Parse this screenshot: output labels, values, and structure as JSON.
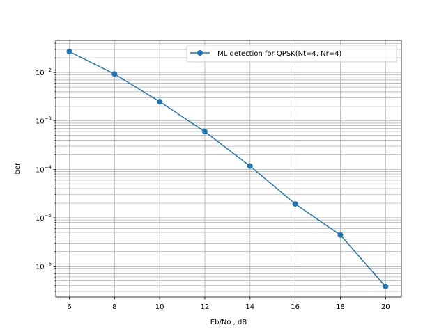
{
  "chart_data": {
    "type": "line",
    "title": "",
    "xlabel": "Eb/No , dB",
    "ylabel": "ber",
    "x": [
      6,
      8,
      10,
      12,
      14,
      16,
      18,
      20
    ],
    "series": [
      {
        "name": " ML detection for QPSK(Nt=4, Nr=4)",
        "color": "#1f77b4",
        "values": [
          0.027,
          0.0093,
          0.0025,
          0.0006,
          0.000117,
          1.93e-05,
          4.4e-06,
          3.8e-07
        ]
      }
    ],
    "xlim": [
      5.4,
      20.7
    ],
    "ylim": [
      2.3e-07,
      0.046
    ],
    "xticks": [
      6,
      8,
      10,
      12,
      14,
      16,
      18,
      20
    ],
    "yticks": [
      {
        "value": 0.01,
        "mantissa": "10",
        "exp": "−2"
      },
      {
        "value": 0.001,
        "mantissa": "10",
        "exp": "−3"
      },
      {
        "value": 0.0001,
        "mantissa": "10",
        "exp": "−4"
      },
      {
        "value": 1e-05,
        "mantissa": "10",
        "exp": "−5"
      },
      {
        "value": 1e-06,
        "mantissa": "10",
        "exp": "−6"
      }
    ],
    "yscale": "log",
    "grid": "major and minor",
    "legend_position": "top-right"
  }
}
